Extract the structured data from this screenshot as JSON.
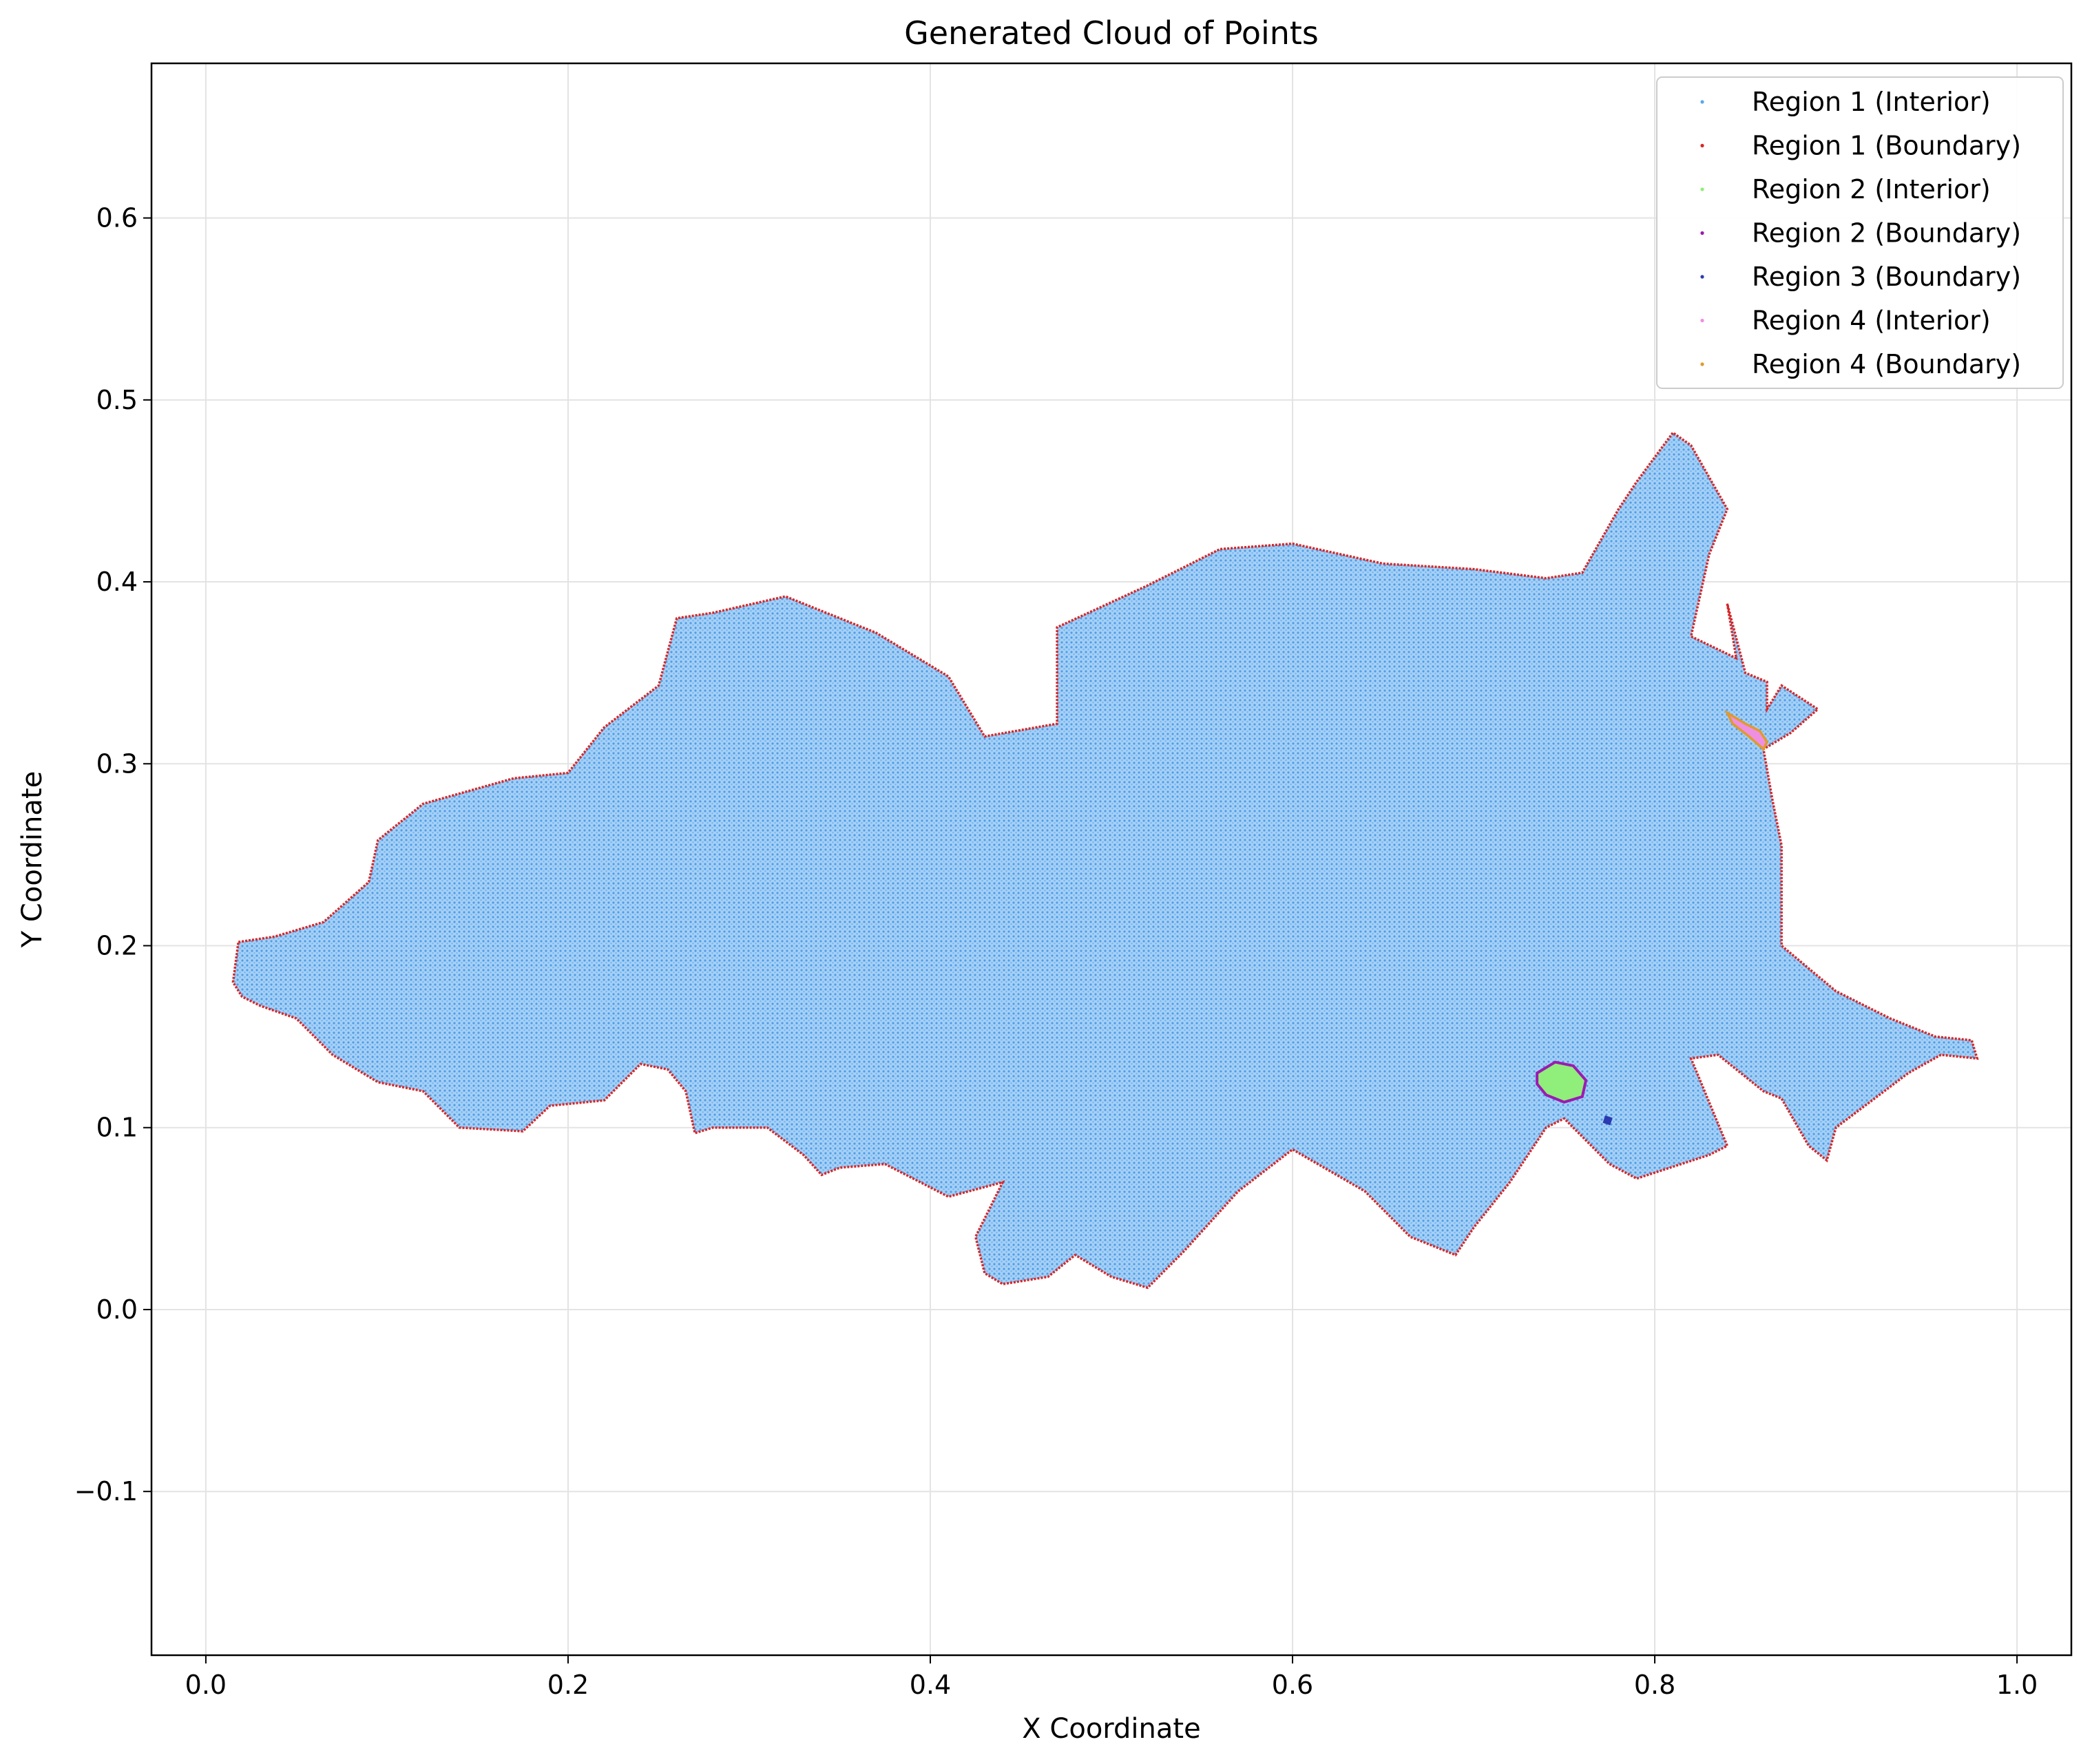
{
  "chart_data": {
    "type": "scatter",
    "title": "Generated Cloud of Points",
    "xlabel": "X Coordinate",
    "ylabel": "Y Coordinate",
    "xlim": [
      -0.03,
      1.03
    ],
    "ylim": [
      -0.19,
      0.685
    ],
    "xticks": [
      0.0,
      0.2,
      0.4,
      0.6,
      0.8,
      1.0
    ],
    "xtick_labels": [
      "0.0",
      "0.2",
      "0.4",
      "0.6",
      "0.8",
      "1.0"
    ],
    "yticks": [
      -0.1,
      0.0,
      0.1,
      0.2,
      0.3,
      0.4,
      0.5,
      0.6
    ],
    "ytick_labels": [
      "−0.1",
      "0.0",
      "0.1",
      "0.2",
      "0.3",
      "0.4",
      "0.5",
      "0.6"
    ],
    "grid": true,
    "legend_position": "top-right",
    "series": [
      {
        "name": "Region 1 (Interior)",
        "role": "interior",
        "color": "#5aa8ec",
        "outline": [
          [
            0.018,
            0.202
          ],
          [
            0.038,
            0.205
          ],
          [
            0.065,
            0.213
          ],
          [
            0.09,
            0.235
          ],
          [
            0.095,
            0.258
          ],
          [
            0.12,
            0.278
          ],
          [
            0.17,
            0.292
          ],
          [
            0.2,
            0.295
          ],
          [
            0.22,
            0.32
          ],
          [
            0.25,
            0.343
          ],
          [
            0.26,
            0.38
          ],
          [
            0.28,
            0.383
          ],
          [
            0.32,
            0.392
          ],
          [
            0.37,
            0.372
          ],
          [
            0.41,
            0.348
          ],
          [
            0.43,
            0.315
          ],
          [
            0.47,
            0.322
          ],
          [
            0.47,
            0.375
          ],
          [
            0.52,
            0.398
          ],
          [
            0.56,
            0.418
          ],
          [
            0.6,
            0.421
          ],
          [
            0.65,
            0.41
          ],
          [
            0.7,
            0.407
          ],
          [
            0.74,
            0.402
          ],
          [
            0.76,
            0.405
          ],
          [
            0.78,
            0.44
          ],
          [
            0.79,
            0.455
          ],
          [
            0.81,
            0.482
          ],
          [
            0.82,
            0.475
          ],
          [
            0.84,
            0.44
          ],
          [
            0.83,
            0.415
          ],
          [
            0.82,
            0.37
          ],
          [
            0.845,
            0.358
          ],
          [
            0.84,
            0.388
          ],
          [
            0.85,
            0.35
          ],
          [
            0.862,
            0.345
          ],
          [
            0.862,
            0.33
          ],
          [
            0.87,
            0.343
          ],
          [
            0.89,
            0.33
          ],
          [
            0.875,
            0.317
          ],
          [
            0.86,
            0.308
          ],
          [
            0.865,
            0.28
          ],
          [
            0.87,
            0.255
          ],
          [
            0.87,
            0.245
          ],
          [
            0.87,
            0.2
          ],
          [
            0.9,
            0.175
          ],
          [
            0.93,
            0.16
          ],
          [
            0.955,
            0.15
          ],
          [
            0.975,
            0.148
          ],
          [
            0.978,
            0.138
          ],
          [
            0.958,
            0.14
          ],
          [
            0.94,
            0.13
          ],
          [
            0.9,
            0.1
          ],
          [
            0.895,
            0.082
          ],
          [
            0.885,
            0.09
          ],
          [
            0.87,
            0.116
          ],
          [
            0.86,
            0.12
          ],
          [
            0.835,
            0.14
          ],
          [
            0.82,
            0.138
          ],
          [
            0.84,
            0.09
          ],
          [
            0.83,
            0.085
          ],
          [
            0.79,
            0.072
          ],
          [
            0.775,
            0.08
          ],
          [
            0.75,
            0.105
          ],
          [
            0.74,
            0.1
          ],
          [
            0.72,
            0.07
          ],
          [
            0.7,
            0.045
          ],
          [
            0.69,
            0.03
          ],
          [
            0.665,
            0.04
          ],
          [
            0.64,
            0.065
          ],
          [
            0.6,
            0.088
          ],
          [
            0.57,
            0.065
          ],
          [
            0.54,
            0.032
          ],
          [
            0.52,
            0.012
          ],
          [
            0.5,
            0.018
          ],
          [
            0.48,
            0.03
          ],
          [
            0.465,
            0.018
          ],
          [
            0.44,
            0.014
          ],
          [
            0.43,
            0.02
          ],
          [
            0.425,
            0.04
          ],
          [
            0.44,
            0.07
          ],
          [
            0.41,
            0.062
          ],
          [
            0.375,
            0.08
          ],
          [
            0.35,
            0.078
          ],
          [
            0.34,
            0.074
          ],
          [
            0.33,
            0.085
          ],
          [
            0.31,
            0.1
          ],
          [
            0.28,
            0.1
          ],
          [
            0.27,
            0.097
          ],
          [
            0.265,
            0.12
          ],
          [
            0.255,
            0.132
          ],
          [
            0.24,
            0.135
          ],
          [
            0.22,
            0.115
          ],
          [
            0.19,
            0.112
          ],
          [
            0.175,
            0.098
          ],
          [
            0.14,
            0.1
          ],
          [
            0.12,
            0.12
          ],
          [
            0.095,
            0.125
          ],
          [
            0.07,
            0.14
          ],
          [
            0.05,
            0.16
          ],
          [
            0.03,
            0.167
          ],
          [
            0.02,
            0.172
          ],
          [
            0.015,
            0.18
          ]
        ]
      },
      {
        "name": "Region 1 (Boundary)",
        "role": "boundary-of-region-1",
        "color": "#d62728"
      },
      {
        "name": "Region 2 (Interior)",
        "role": "interior",
        "color": "#90ee7a",
        "outline": [
          [
            0.735,
            0.13
          ],
          [
            0.745,
            0.136
          ],
          [
            0.755,
            0.134
          ],
          [
            0.762,
            0.126
          ],
          [
            0.76,
            0.117
          ],
          [
            0.75,
            0.114
          ],
          [
            0.74,
            0.118
          ],
          [
            0.735,
            0.124
          ]
        ]
      },
      {
        "name": "Region 2 (Boundary)",
        "role": "boundary-of-region-2",
        "color": "#9b1bb1"
      },
      {
        "name": "Region 3 (Boundary)",
        "role": "boundary",
        "color": "#2c3bb0",
        "outline": [
          [
            0.773,
            0.106
          ],
          [
            0.776,
            0.105
          ],
          [
            0.775,
            0.102
          ],
          [
            0.772,
            0.103
          ]
        ]
      },
      {
        "name": "Region 4 (Interior)",
        "role": "interior",
        "color": "#ef8fe2",
        "outline": [
          [
            0.84,
            0.328
          ],
          [
            0.85,
            0.322
          ],
          [
            0.858,
            0.318
          ],
          [
            0.862,
            0.312
          ],
          [
            0.86,
            0.308
          ],
          [
            0.852,
            0.315
          ],
          [
            0.843,
            0.322
          ]
        ]
      },
      {
        "name": "Region 4 (Boundary)",
        "role": "boundary-of-region-4",
        "color": "#e09a2c"
      }
    ]
  }
}
